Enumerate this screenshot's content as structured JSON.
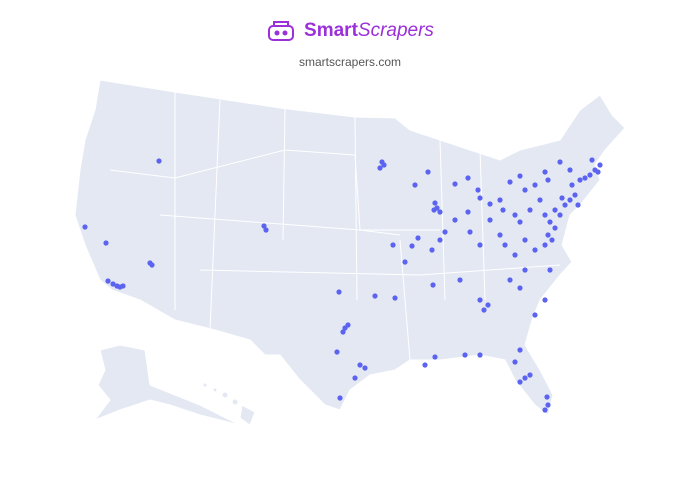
{
  "brand": {
    "name_bold": "Smart",
    "name_italic": "Scrapers",
    "url": "smartscrapers.com"
  },
  "colors": {
    "brand": "#9b30d9",
    "land": "#e3e8f3",
    "border": "#ffffff",
    "dot": "#5b63f0",
    "watermark": "#d9c8f0"
  },
  "map": {
    "region": "United States",
    "marker_icon": "location-dot"
  }
}
